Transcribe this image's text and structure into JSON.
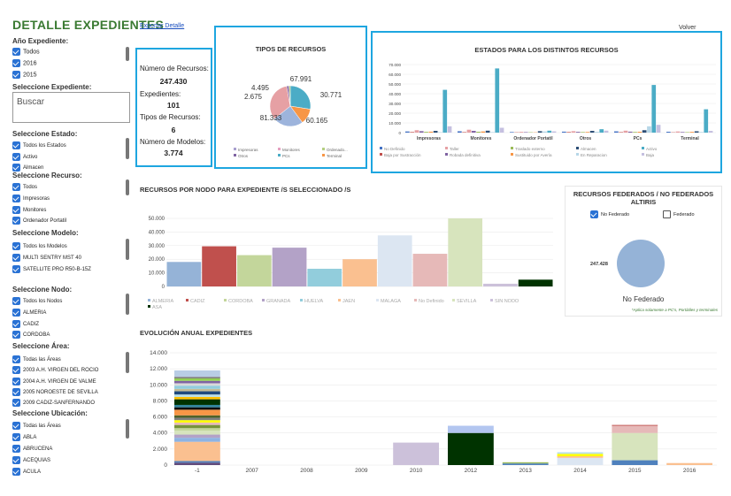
{
  "sidebar": {
    "title": "DETALLE EXPEDIENTES",
    "anio_header": "Año Expediente:",
    "anio_options": [
      "Todos",
      "2016",
      "2015"
    ],
    "expediente_header": "Seleccione Expediente:",
    "search_placeholder": "Buscar",
    "estado_header": "Seleccione Estado:",
    "estado_options": [
      "Todos los Estados",
      "Activo",
      "Almacen"
    ],
    "recurso_header": "Seleccione Recurso:",
    "recurso_options": [
      "Todos",
      "Impresoras",
      "Monitores",
      "Ordenador Portatil"
    ],
    "modelo_header": "Seleccione Modelo:",
    "modelo_options": [
      "Todos los Modelos",
      "MULTI SENTRY MST 40",
      "SATELLITE PRO R50-B-15Z"
    ],
    "nodo_header": "Seleccione Nodo:",
    "nodo_options": [
      "Todos los Nodos",
      "ALMERIA",
      "CADIZ",
      "CORDOBA"
    ],
    "area_header": "Seleccione Área:",
    "area_options": [
      "Todas las Áreas",
      "2003 A.H. VIRGEN DEL ROCIO",
      "2004 A.H. VIRGEN DE VALME",
      "2005 NOROESTE DE SEVILLA",
      "2009 CADIZ-SANFERNANDO"
    ],
    "ubicacion_header": "Seleccione Ubicación:",
    "ubicacion_options": [
      "Todas las Áreas",
      "ABLA",
      "ABRUCENA",
      "ACEQUIAS",
      "ACULA"
    ]
  },
  "header": {
    "export_link": "Exportar Detalle",
    "back_link": "Volver"
  },
  "stats": {
    "num_recursos_label": "Número de Recursos:",
    "num_recursos_value": "247.430",
    "expedientes_label": "Expedientes:",
    "expedientes_value": "101",
    "tipos_label": "Tipos de Recursos:",
    "tipos_value": "6",
    "modelos_label": "Número de Modelos:",
    "modelos_value": "3.774"
  },
  "federados": {
    "title": "RECURSOS FEDERADOS / NO FEDERADOS ALTIRIS",
    "no_federado_label": "No Federado",
    "federado_label": "Federado",
    "value_label": "247.428",
    "pie_label": "No Federado",
    "note": "*Aplica solamente a PC's, Portátiles y terminales"
  },
  "chart_data": [
    {
      "type": "pie",
      "title": "TIPOS DE RECURSOS",
      "slices": [
        {
          "label": "Impresoras",
          "value": 67991,
          "display": "67.991",
          "color": "#4bacc6"
        },
        {
          "label": "Monitores",
          "value": 30771,
          "display": "30.771",
          "color": "#f79646"
        },
        {
          "label": "Ordenador Portatil",
          "value": 60165,
          "display": "60.165",
          "color": "#9db4dc"
        },
        {
          "label": "Otros",
          "value": 81333,
          "display": "81.333",
          "color": "#e6a0a4"
        },
        {
          "label": "PCs",
          "value": 4495,
          "display": "4.495",
          "color": "#8064a2"
        },
        {
          "label": "Terminal",
          "value": 2675,
          "display": "2.675",
          "color": "#9bbb59"
        }
      ],
      "legend": [
        {
          "label": "Impresoras",
          "color": "#a9a0cf"
        },
        {
          "label": "Monitores",
          "color": "#e6a0c0"
        },
        {
          "label": "Ordenado...",
          "color": "#b5cf82"
        },
        {
          "label": "Otros",
          "color": "#8064a2"
        },
        {
          "label": "PCs",
          "color": "#4bacc6"
        },
        {
          "label": "Terminal",
          "color": "#f79646"
        }
      ]
    },
    {
      "type": "bar",
      "title": "ESTADOS PARA LOS DISTINTOS RECURSOS",
      "categories": [
        "Impresoras",
        "Monitores",
        "Ordenador Portatil",
        "Otros",
        "PCs",
        "Terminal"
      ],
      "ylim": [
        0,
        70000
      ],
      "yticks": [
        "0",
        "10.000",
        "20.000",
        "30.000",
        "40.000",
        "50.000",
        "60.000",
        "70.000"
      ],
      "series": [
        {
          "name": "No Definido",
          "color": "#4472c4",
          "values": [
            1200,
            1400,
            600,
            1000,
            1300,
            900
          ]
        },
        {
          "name": "Baja por Sustracción",
          "color": "#c0504d",
          "values": [
            600,
            500,
            300,
            600,
            500,
            300
          ]
        },
        {
          "name": "Taller",
          "color": "#e6a0a4",
          "values": [
            2500,
            3000,
            800,
            1500,
            2000,
            1200
          ]
        },
        {
          "name": "Robada definitiva",
          "color": "#8064a2",
          "values": [
            1500,
            1800,
            500,
            800,
            1000,
            600
          ]
        },
        {
          "name": "Traslado externo",
          "color": "#9bbb59",
          "values": [
            800,
            900,
            400,
            600,
            700,
            500
          ]
        },
        {
          "name": "Sustituido por Avería",
          "color": "#f79646",
          "values": [
            1000,
            1200,
            300,
            700,
            900,
            800
          ]
        },
        {
          "name": "Almacen",
          "color": "#2c4d75",
          "values": [
            1800,
            2000,
            1500,
            1800,
            2500,
            1400
          ]
        },
        {
          "name": "En Reparacion",
          "color": "#b7d7e8",
          "values": [
            500,
            600,
            1200,
            900,
            6500,
            700
          ]
        },
        {
          "name": "Activo",
          "color": "#4bacc6",
          "values": [
            44000,
            66000,
            2000,
            3500,
            49000,
            24000
          ]
        },
        {
          "name": "Baja",
          "color": "#c5c0e0",
          "values": [
            6500,
            5000,
            1300,
            2000,
            8000,
            1800
          ]
        }
      ]
    },
    {
      "type": "bar",
      "title": "RECURSOS POR NODO PARA EXPEDIENTE /S SELECCIONADO /S",
      "categories": [
        "ALMERIA",
        "CADIZ",
        "CORDOBA",
        "GRANADA",
        "HUELVA",
        "JAEN",
        "MALAGA",
        "No Definido",
        "SEVILLA",
        "SIN NODO",
        "ASA"
      ],
      "values": [
        18000,
        29500,
        23000,
        28500,
        13000,
        20000,
        37500,
        24000,
        50000,
        2000,
        5000
      ],
      "colors": [
        "#95b3d7",
        "#c0504d",
        "#c3d69b",
        "#b3a2c7",
        "#92cddc",
        "#fac090",
        "#dce6f2",
        "#e6b9b8",
        "#d7e4bd",
        "#ccc1da",
        "#003300"
      ],
      "ylim": [
        0,
        50000
      ],
      "yticks": [
        "0",
        "10.000",
        "20.000",
        "30.000",
        "40.000",
        "50.000"
      ]
    },
    {
      "type": "bar",
      "title": "EVOLUCIÓN ANUAL EXPEDIENTES",
      "categories": [
        "-1",
        "2007",
        "2008",
        "2009",
        "2010",
        "2012",
        "2013",
        "2014",
        "2015",
        "2016"
      ],
      "ylim": [
        0,
        14000
      ],
      "yticks": [
        "0",
        "2.000",
        "4.000",
        "6.000",
        "8.000",
        "10.000",
        "12.000",
        "14.000"
      ],
      "stacks": [
        [
          [
            300,
            "#604a7b"
          ],
          [
            200,
            "#4f81bd"
          ],
          [
            2400,
            "#fac090"
          ],
          [
            500,
            "#8db3e2"
          ],
          [
            400,
            "#b3a2c7"
          ],
          [
            500,
            "#d7e4bd"
          ],
          [
            300,
            "#c3d69b"
          ],
          [
            400,
            "#77933c"
          ],
          [
            300,
            "#e6b9b8"
          ],
          [
            300,
            "#ffff00"
          ],
          [
            300,
            "#7f7f7f"
          ],
          [
            300,
            "#4f6228"
          ],
          [
            700,
            "#f79646"
          ],
          [
            300,
            "#0c0c0c"
          ],
          [
            300,
            "#31859c"
          ],
          [
            700,
            "#003300"
          ],
          [
            300,
            "#ffc000"
          ],
          [
            300,
            "#b7dee8"
          ],
          [
            400,
            "#1f497d"
          ],
          [
            300,
            "#c4bd97"
          ],
          [
            400,
            "#93cddd"
          ],
          [
            300,
            "#d9d9d9"
          ],
          [
            300,
            "#8064a2"
          ],
          [
            300,
            "#92d050"
          ],
          [
            200,
            "#7f7f7f"
          ],
          [
            800,
            "#b9cde5"
          ]
        ],
        [],
        [],
        [],
        [
          [
            2800,
            "#ccc1da"
          ]
        ],
        [
          [
            4000,
            "#003300"
          ],
          [
            900,
            "#b3c6f0"
          ]
        ],
        [
          [
            200,
            "#4f81bd"
          ],
          [
            150,
            "#9bbb59"
          ]
        ],
        [
          [
            900,
            "#dce6f2"
          ],
          [
            200,
            "#fac090"
          ],
          [
            300,
            "#ffff00"
          ],
          [
            200,
            "#b7dee8"
          ]
        ],
        [
          [
            600,
            "#4f81bd"
          ],
          [
            3400,
            "#d7e4bd"
          ],
          [
            900,
            "#e6b9b8"
          ],
          [
            100,
            "#c0504d"
          ]
        ],
        [
          [
            250,
            "#fac090"
          ]
        ]
      ]
    }
  ]
}
